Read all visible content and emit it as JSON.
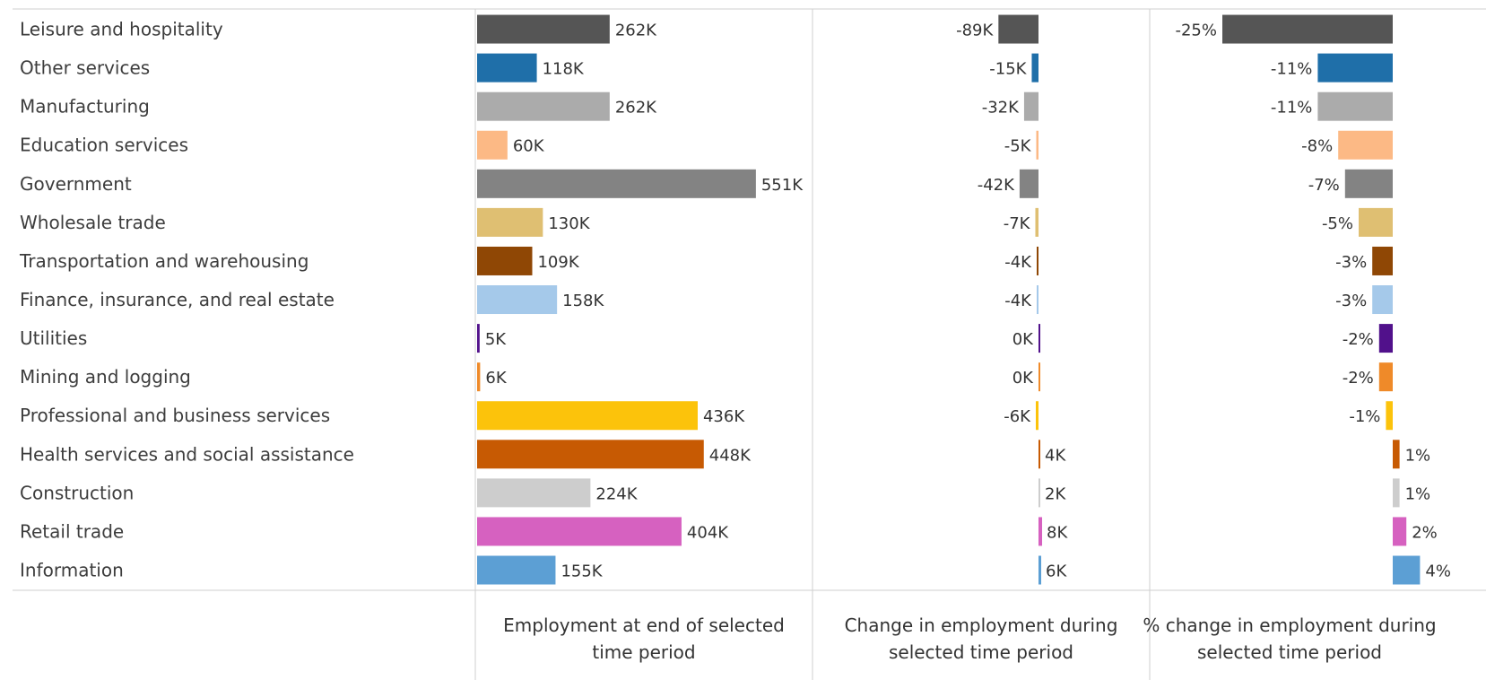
{
  "chart_data": {
    "type": "bar",
    "categories": [
      "Leisure and hospitality",
      "Other services",
      "Manufacturing",
      "Education services",
      "Government",
      "Wholesale trade",
      "Transportation and warehousing",
      "Finance, insurance, and real estate",
      "Utilities",
      "Mining and logging",
      "Professional and business services",
      "Health services and social assistance",
      "Construction",
      "Retail trade",
      "Information"
    ],
    "colors": [
      "#555555",
      "#1f6fa9",
      "#ababab",
      "#fcb985",
      "#838383",
      "#dfbf72",
      "#8f4705",
      "#a5c9ea",
      "#51118b",
      "#ef8a29",
      "#fcc30b",
      "#c75a03",
      "#cdcdcd",
      "#d661c0",
      "#5c9fd4"
    ],
    "series": [
      {
        "name": "Employment at end of selected time period",
        "values": [
          262,
          118,
          262,
          60,
          551,
          130,
          109,
          158,
          5,
          6,
          436,
          448,
          224,
          404,
          155
        ],
        "labels": [
          "262K",
          "118K",
          "262K",
          "60K",
          "551K",
          "130K",
          "109K",
          "158K",
          "5K",
          "6K",
          "436K",
          "448K",
          "224K",
          "404K",
          "155K"
        ]
      },
      {
        "name": "Change in employment during selected time period",
        "values": [
          -89,
          -15,
          -32,
          -5,
          -42,
          -7,
          -4,
          -4,
          0,
          0,
          -6,
          4,
          2,
          8,
          6
        ],
        "labels": [
          "-89K",
          "-15K",
          "-32K",
          "-5K",
          "-42K",
          "-7K",
          "-4K",
          "-4K",
          "0K",
          "0K",
          "-6K",
          "4K",
          "2K",
          "8K",
          "6K"
        ]
      },
      {
        "name": "% change in employment during selected time period",
        "values": [
          -25,
          -11,
          -11,
          -8,
          -7,
          -5,
          -3,
          -3,
          -2,
          -2,
          -1,
          1,
          1,
          2,
          4
        ],
        "labels": [
          "-25%",
          "-11%",
          "-11%",
          "-8%",
          "-7%",
          "-5%",
          "-3%",
          "-3%",
          "-2%",
          "-2%",
          "-1%",
          "1%",
          "1%",
          "2%",
          "4%"
        ]
      }
    ],
    "column_titles": [
      [
        "Employment at end of selected",
        "time period"
      ],
      [
        "Change in employment during",
        "selected time period"
      ],
      [
        "% change in employment during",
        "selected time period"
      ]
    ]
  }
}
